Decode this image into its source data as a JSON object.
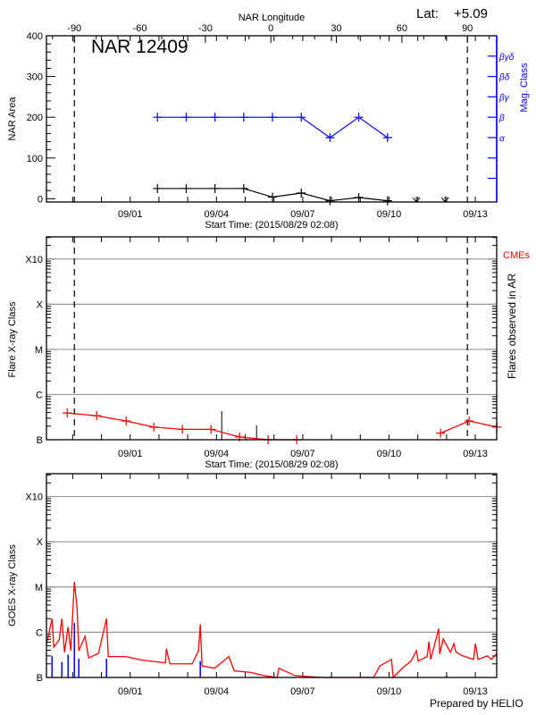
{
  "header": {
    "top_axis_label": "NAR Longitude",
    "lat_label": "Lat:",
    "lat_value": "+5.09",
    "footer": "Prepared by HELIO"
  },
  "colors": {
    "area": "#000000",
    "mag_class": "#0000ff",
    "flares": "#ff0000",
    "goes": "#ff0000",
    "goes_events": "#0000ff",
    "grid": "#999999",
    "limb": "#000000"
  },
  "chart_data": [
    {
      "type": "line",
      "title": "NAR 12409",
      "xlabel": "Start Time: (2015/08/29 02:08)",
      "ylabel": "NAR Area",
      "y2label": "Mag. Class",
      "xlim": [
        "2015-08-29 02:08",
        "2015-09-13 17:50"
      ],
      "ylim": [
        -8,
        400
      ],
      "yticks": [
        0,
        100,
        200,
        300,
        400
      ],
      "xticks": [
        "09/01",
        "09/04",
        "09/07",
        "09/10",
        "09/13"
      ],
      "top_axis": {
        "label": "NAR Longitude",
        "ticks": [
          -90,
          -60,
          -30,
          0,
          30,
          60,
          90
        ],
        "range_dates": [
          "2015-08-30 01:25",
          "2015-09-12 17:23"
        ]
      },
      "limb_crossings": [
        "2015-08-30 01:25",
        "2015-09-12 17:23"
      ],
      "mag_class_axis": [
        {
          "level": 50,
          "label": ""
        },
        {
          "level": 100,
          "label": ""
        },
        {
          "level": 150,
          "label": "α"
        },
        {
          "level": 200,
          "label": "β"
        },
        {
          "level": 250,
          "label": "βγ"
        },
        {
          "level": 300,
          "label": "βδ"
        },
        {
          "level": 350,
          "label": "βγδ"
        }
      ],
      "x": [
        "2015-09-01 22:45",
        "2015-09-02 22:45",
        "2015-09-03 22:45",
        "2015-09-04 22:45",
        "2015-09-05 22:45",
        "2015-09-06 22:45",
        "2015-09-07 22:45",
        "2015-09-08 22:45",
        "2015-09-09 22:45",
        "2015-09-10 22:45",
        "2015-09-11 22:45"
      ],
      "series": [
        {
          "key": "area",
          "values": [
            25,
            25,
            25,
            25,
            4,
            14,
            -5,
            3,
            -5,
            null,
            null
          ],
          "missing_marker": "down-arrow"
        },
        {
          "key": "mag_class",
          "values": [
            "β",
            "β",
            "β",
            "β",
            "β",
            "β",
            "α",
            "β",
            "α",
            null,
            null
          ]
        }
      ]
    },
    {
      "type": "line",
      "xlabel": "Start Time: (2015/08/29 02:08)",
      "ylabel": "Flare X-ray Class",
      "y2label": "Flares observed in AR",
      "legend": "CMEs",
      "yscale": "log",
      "xlim": [
        "2015-08-29 02:08",
        "2015-09-13 17:50"
      ],
      "ylim": [
        1e-07,
        0.0031
      ],
      "yticks": [
        {
          "value": 1e-07,
          "label": "B"
        },
        {
          "value": 1e-06,
          "label": "C"
        },
        {
          "value": 1e-05,
          "label": "M"
        },
        {
          "value": 0.0001,
          "label": "X"
        },
        {
          "value": 0.001,
          "label": "X10"
        }
      ],
      "xticks": [
        "09/01",
        "09/04",
        "09/07",
        "09/10",
        "09/13"
      ],
      "grid": true,
      "limb_crossings": [
        "2015-08-30 01:25",
        "2015-09-12 17:23"
      ],
      "series": [
        {
          "key": "flares",
          "segments": [
            {
              "x": [
                "2015-08-29 19:28",
                "2015-08-30 20:02",
                "2015-08-31 20:38",
                "2015-09-01 19:45",
                "2015-09-02 19:36",
                "2015-09-03 19:28",
                "2015-09-04 19:18",
                "2015-09-05 19:09",
                "2015-09-06 19:00"
              ],
              "y": [
                3.9e-07,
                3.4e-07,
                2.6e-07,
                1.9e-07,
                1.7e-07,
                1.7e-07,
                1.15e-07,
                1e-07,
                1e-07
              ]
            },
            {
              "x": [
                "2015-09-11 19:00",
                "2015-09-12 18:52",
                "2015-09-13 17:57"
              ],
              "y": [
                1.4e-07,
                2.6e-07,
                1.9e-07
              ]
            }
          ]
        }
      ],
      "events": [
        {
          "x": "2015-09-04 04:24",
          "y": 4.3e-07
        },
        {
          "x": "2015-09-05 09:27",
          "y": 2.1e-07
        }
      ]
    },
    {
      "type": "line",
      "ylabel": "GOES X-ray Class",
      "yscale": "log",
      "xlim": [
        "2015-08-29 02:08",
        "2015-09-13 17:50"
      ],
      "ylim": [
        1e-07,
        0.0032
      ],
      "yticks": [
        {
          "value": 1e-07,
          "label": "B"
        },
        {
          "value": 1e-06,
          "label": "C"
        },
        {
          "value": 1e-05,
          "label": "M"
        },
        {
          "value": 0.0001,
          "label": "X"
        },
        {
          "value": 0.001,
          "label": "X10"
        }
      ],
      "xticks": [
        "09/01",
        "09/04",
        "09/07",
        "09/10",
        "09/13"
      ],
      "grid": true,
      "series": [
        {
          "key": "goes",
          "x": [
            "2015-08-29 02:08",
            "2015-08-29 06:48",
            "2015-08-29 08:17",
            "2015-08-29 12:45",
            "2015-08-29 15:00",
            "2015-08-29 17:13",
            "2015-08-29 20:12",
            "2015-08-29 22:26",
            "2015-08-30 01:25",
            "2015-08-30 03:39",
            "2015-08-30 05:08",
            "2015-08-30 10:22",
            "2015-08-30 13:20",
            "2015-08-30 21:33",
            "2015-08-31 04:15",
            "2015-08-31 05:44",
            "2015-08-31 19:54",
            "2015-09-01 10:48",
            "2015-09-02 05:26",
            "2015-09-02 06:11",
            "2015-09-02 09:10",
            "2015-09-03 03:48",
            "2015-09-03 09:01",
            "2015-09-03 10:30",
            "2015-09-03 12:00",
            "2015-09-03 22:26",
            "2015-09-04 10:22",
            "2015-09-04 14:50",
            "2015-09-05 04:15",
            "2015-09-05 15:26",
            "2015-09-06 02:37",
            "2015-09-06 04:06",
            "2015-09-06 17:31",
            "2015-09-07 15:52",
            "2015-09-08 17:57",
            "2015-09-09 11:07",
            "2015-09-09 16:19",
            "2015-09-10 02:01",
            "2015-09-10 03:30",
            "2015-09-10 10:58",
            "2015-09-10 18:25",
            "2015-09-10 22:52",
            "2015-09-11 00:23",
            "2015-09-11 07:50",
            "2015-09-11 09:19",
            "2015-09-11 10:48",
            "2015-09-11 17:31",
            "2015-09-11 18:16",
            "2015-09-11 21:14",
            "2015-09-12 03:13",
            "2015-09-12 06:11",
            "2015-09-12 07:41",
            "2015-09-12 12:09",
            "2015-09-12 22:35",
            "2015-09-13 00:04",
            "2015-09-13 02:18",
            "2015-09-13 09:46",
            "2015-09-13 13:29",
            "2015-09-13 17:50"
          ],
          "y": [
            5.2e-07,
            2e-06,
            4.7e-07,
            6.8e-07,
            2e-06,
            3.6e-07,
            1.3e-06,
            3.9e-07,
            1.3e-05,
            3.5e-06,
            3.9e-07,
            8.1e-07,
            2.7e-07,
            3.4e-07,
            2e-06,
            2.9e-07,
            2.9e-07,
            2.4e-07,
            2.1e-07,
            4.3e-07,
            2e-07,
            2e-07,
            3.9e-07,
            1.5e-06,
            1.8e-07,
            1.6e-07,
            2.9e-07,
            1.4e-07,
            1.3e-07,
            1.1e-07,
            1e-07,
            1.6e-07,
            1.1e-07,
            1e-07,
            1e-07,
            1e-07,
            1.8e-07,
            2.5e-07,
            1e-07,
            1.6e-07,
            2.3e-07,
            3.9e-07,
            2.3e-07,
            2.9e-07,
            6.2e-07,
            2.5e-07,
            1.2e-06,
            3.3e-07,
            7.1e-07,
            3.6e-07,
            5.6e-07,
            3.7e-07,
            3.1e-07,
            2.5e-07,
            5.6e-07,
            2.5e-07,
            3e-07,
            2.5e-07,
            3.4e-07
          ]
        },
        {
          "key": "goes_events",
          "x": [
            "2015-08-29 06:48",
            "2015-08-29 15:00",
            "2015-08-29 20:12",
            "2015-08-30 01:25",
            "2015-08-30 05:08",
            "2015-08-31 04:15",
            "2015-09-03 10:30",
            "2015-09-12 00:00"
          ],
          "y": [
            3e-07,
            2.2e-07,
            3.2e-07,
            1.6e-06,
            2.6e-07,
            2.6e-07,
            2.3e-07,
            1.1e-07
          ]
        }
      ]
    }
  ]
}
